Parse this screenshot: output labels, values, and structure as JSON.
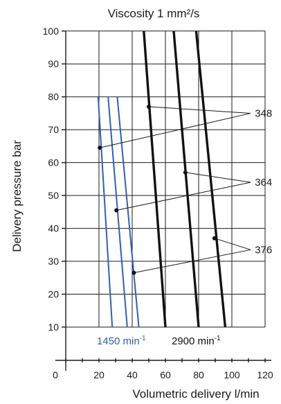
{
  "chart_data": {
    "type": "line",
    "title": "Viscosity 1 mm²/s",
    "xlabel": "Volumetric delivery l/min",
    "ylabel": "Delivery pressure bar",
    "xlim": [
      0,
      125
    ],
    "ylim": [
      0,
      102
    ],
    "x_ticks": [
      "0",
      "20",
      "40",
      "60",
      "80",
      "100",
      "120"
    ],
    "y_ticks": [
      "10",
      "20",
      "30",
      "40",
      "50",
      "60",
      "70",
      "80",
      "90",
      "100"
    ],
    "grid": true,
    "colors": {
      "low_speed": "#2f5fb0",
      "high_speed": "#111111"
    },
    "speed_labels": [
      {
        "text": "1450 min",
        "sup": "-1",
        "color": "#2f5fb0"
      },
      {
        "text": "2900 min",
        "sup": "-1",
        "color": "#111111"
      }
    ],
    "series": [
      {
        "group": "348",
        "speed": "1450",
        "points": [
          [
            19.5,
            80
          ],
          [
            28,
            10
          ]
        ]
      },
      {
        "group": "364",
        "speed": "1450",
        "points": [
          [
            25.5,
            80
          ],
          [
            37,
            10
          ]
        ]
      },
      {
        "group": "376",
        "speed": "1450",
        "points": [
          [
            31,
            80
          ],
          [
            44,
            10
          ]
        ]
      },
      {
        "group": "348",
        "speed": "2900",
        "points": [
          [
            47,
            100
          ],
          [
            60,
            10
          ]
        ]
      },
      {
        "group": "364",
        "speed": "2900",
        "points": [
          [
            65,
            100
          ],
          [
            80,
            10
          ]
        ]
      },
      {
        "group": "376",
        "speed": "2900",
        "points": [
          [
            78.5,
            100
          ],
          [
            96,
            10
          ]
        ]
      }
    ],
    "callouts": [
      {
        "label": "348",
        "anchor": [
          113,
          75
        ],
        "targets": [
          [
            50,
            77
          ],
          [
            20.5,
            64.5
          ]
        ]
      },
      {
        "label": "364",
        "anchor": [
          113,
          54
        ],
        "targets": [
          [
            72,
            57
          ],
          [
            30.5,
            45.5
          ]
        ]
      },
      {
        "label": "376",
        "anchor": [
          113,
          33.5
        ],
        "targets": [
          [
            89.5,
            37
          ],
          [
            41,
            26.5
          ]
        ]
      }
    ]
  }
}
